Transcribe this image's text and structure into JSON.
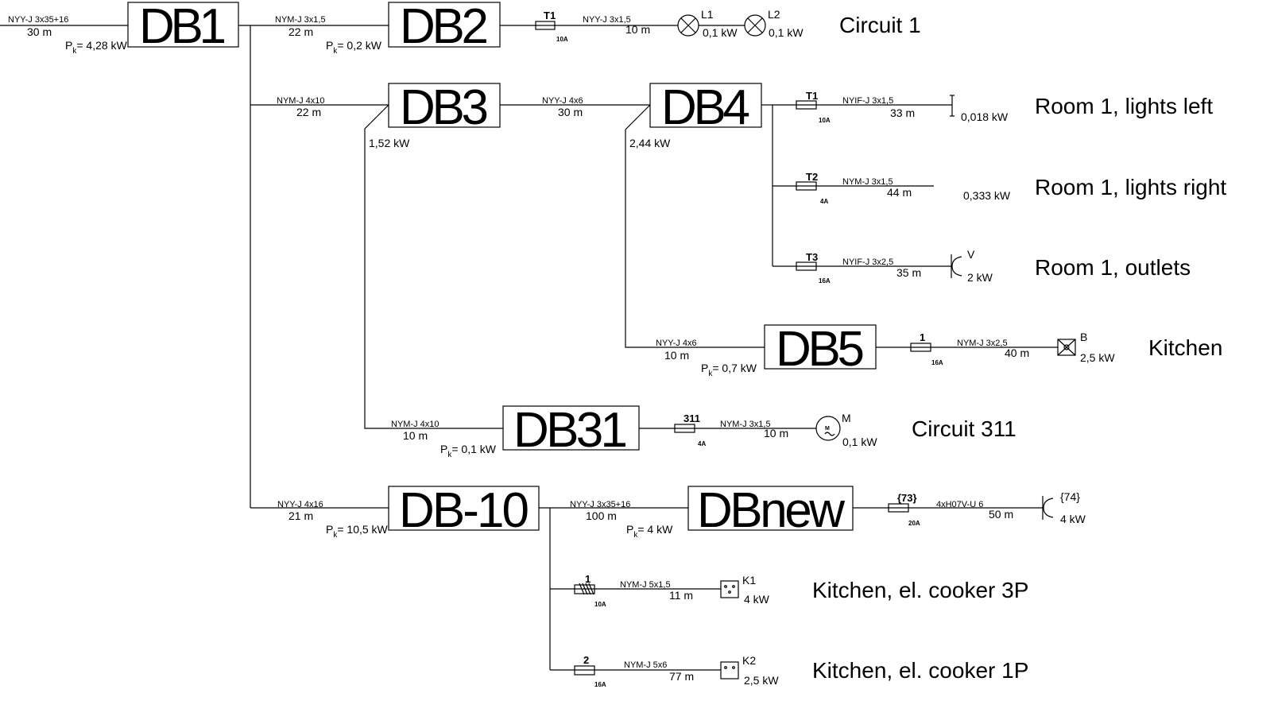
{
  "feed": {
    "cable": "NYY-J 3x35+16",
    "length": "30 m",
    "p": "P",
    "sub": "k",
    "power": "= 4,28 kW"
  },
  "db1": {
    "label": "DB1"
  },
  "db2": {
    "label": "DB2",
    "cable": "NYM-J 3x1,5",
    "length": "22 m",
    "p": "P",
    "sub": "k",
    "power": "= 0,2 kW"
  },
  "circuit1": {
    "fuse": "T1",
    "rating": "10A",
    "cable": "NYY-J 3x1,5",
    "length": "10 m",
    "l1": "L1",
    "l1_power": "0,1 kW",
    "l2": "L2",
    "l2_power": "0,1 kW",
    "title": "Circuit 1"
  },
  "db3": {
    "label": "DB3",
    "cable": "NYM-J 4x10",
    "length": "22 m",
    "power": "1,52 kW"
  },
  "db4": {
    "label": "DB4",
    "cable": "NYY-J 4x6",
    "length": "30 m",
    "power": "2,44 kW"
  },
  "room_left": {
    "fuse": "T1",
    "rating": "10A",
    "cable": "NYIF-J 3x1,5",
    "length": "33 m",
    "power": "0,018 kW",
    "title": "Room 1, lights left"
  },
  "room_right": {
    "fuse": "T2",
    "rating": "4A",
    "cable": "NYM-J 3x1,5",
    "length": "44 m",
    "power": "0,333 kW",
    "title": "Room 1, lights right"
  },
  "room_outlets": {
    "fuse": "T3",
    "rating": "16A",
    "cable": "NYIF-J 3x2,5",
    "length": "35 m",
    "device": "V",
    "power": "2 kW",
    "title": "Room 1, outlets"
  },
  "db5": {
    "label": "DB5",
    "cable": "NYY-J 4x6",
    "length": "10 m",
    "p": "P",
    "sub": "k",
    "power": "= 0,7 kW"
  },
  "kitchen": {
    "fuse": "1",
    "rating": "16A",
    "cable": "NYM-J 3x2,5",
    "length": "40 m",
    "device": "B",
    "power": "2,5 kW",
    "title": "Kitchen"
  },
  "db31": {
    "label": "DB31",
    "cable": "NYM-J 4x10",
    "length": "10 m",
    "p": "P",
    "sub": "k",
    "power": "= 0,1 kW"
  },
  "circuit311": {
    "fuse": "311",
    "rating": "4A",
    "cable": "NYM-J 3x1,5",
    "length": "10 m",
    "device": "M",
    "power": "0,1 kW",
    "title": "Circuit 311"
  },
  "db10": {
    "label": "DB-10",
    "cable": "NYY-J 4x16",
    "length": "21 m",
    "p": "P",
    "sub": "k",
    "power": "= 10,5 kW"
  },
  "dbnew": {
    "label": "DBnew",
    "cable": "NYY-J 3x35+16",
    "length": "100 m",
    "p": "P",
    "sub": "k",
    "power": "= 4 kW"
  },
  "circuit74": {
    "fuse": "{73}",
    "rating": "20A",
    "cable": "4xH07V-U 6",
    "length": "50 m",
    "device": "{74}",
    "power": "4 kW"
  },
  "cooker3p": {
    "fuse": "1",
    "rating": "10A",
    "cable": "NYM-J 5x1,5",
    "length": "11 m",
    "device": "K1",
    "power": "4 kW",
    "title": "Kitchen, el. cooker 3P"
  },
  "cooker1p": {
    "fuse": "2",
    "rating": "16A",
    "cable": "NYM-J 5x6",
    "length": "77 m",
    "device": "K2",
    "power": "2,5 kW",
    "title": "Kitchen, el. cooker 1P"
  }
}
